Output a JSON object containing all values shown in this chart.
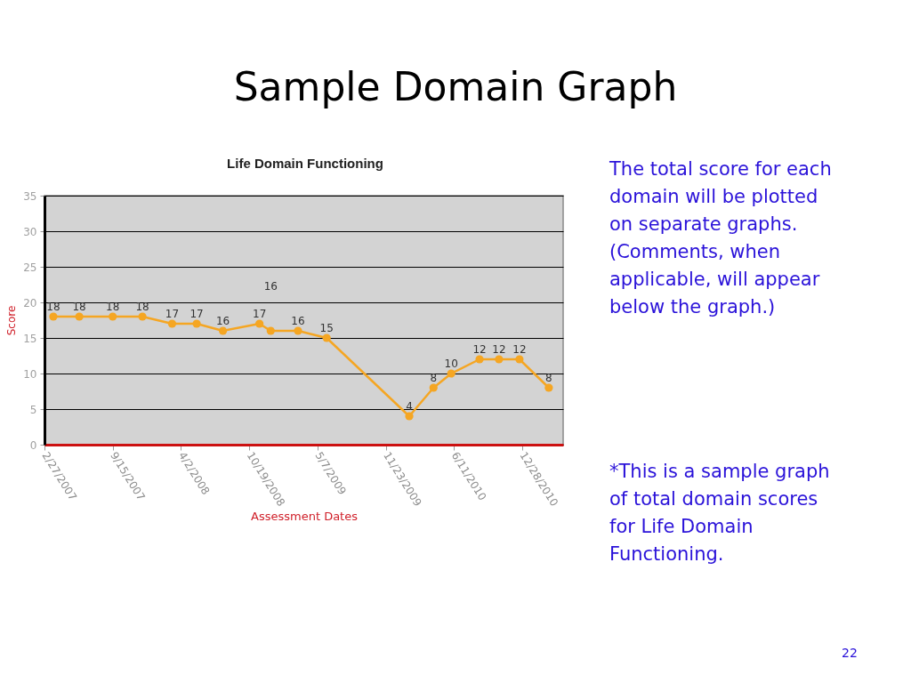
{
  "chart_data": {
    "type": "line",
    "title": "Sample Domain Graph",
    "subtitle": "Life Domain Functioning",
    "xlabel": "Assessment Dates",
    "ylabel": "Score",
    "x": [
      "2007-03-25",
      "2007-06-09",
      "2007-09-15",
      "2007-12-11",
      "2008-03-07",
      "2008-05-18",
      "2008-08-03",
      "2008-11-18",
      "2008-12-21",
      "2009-03-11",
      "2009-06-03",
      "2010-01-31",
      "2010-04-12",
      "2010-06-03",
      "2010-08-25",
      "2010-10-21",
      "2010-12-20",
      "2011-03-16"
    ],
    "series": [
      {
        "color": "#f5a623",
        "values": [
          18,
          18,
          18,
          18,
          17,
          17,
          16,
          17,
          16,
          16,
          15,
          4,
          8,
          10,
          12,
          12,
          12,
          8
        ]
      }
    ],
    "xlim": [
      "2007-02-27",
      "2011-04-27"
    ],
    "xticks": [
      {
        "value": "2007-02-27",
        "label": "2/27/2007"
      },
      {
        "value": "2007-09-15",
        "label": "9/15/2007"
      },
      {
        "value": "2008-04-02",
        "label": "4/2/2008"
      },
      {
        "value": "2008-10-19",
        "label": "10/19/2008"
      },
      {
        "value": "2009-05-07",
        "label": "5/7/2009"
      },
      {
        "value": "2009-11-23",
        "label": "11/23/2009"
      },
      {
        "value": "2010-06-11",
        "label": "6/11/2010"
      },
      {
        "value": "2010-12-28",
        "label": "12/28/2010"
      }
    ],
    "ylim": [
      0,
      35
    ],
    "yticks": [
      0,
      5,
      10,
      15,
      20,
      25,
      30,
      35
    ],
    "grid": "y",
    "marker": "circle",
    "line_style": "solid",
    "data_labels": true,
    "annotations": [
      "The total score for each domain will be plotted on separate graphs. (Comments, when applicable, will appear below the graph.)",
      "*This is a sample graph of total domain scores for Life Domain Functioning.",
      "22"
    ]
  }
}
